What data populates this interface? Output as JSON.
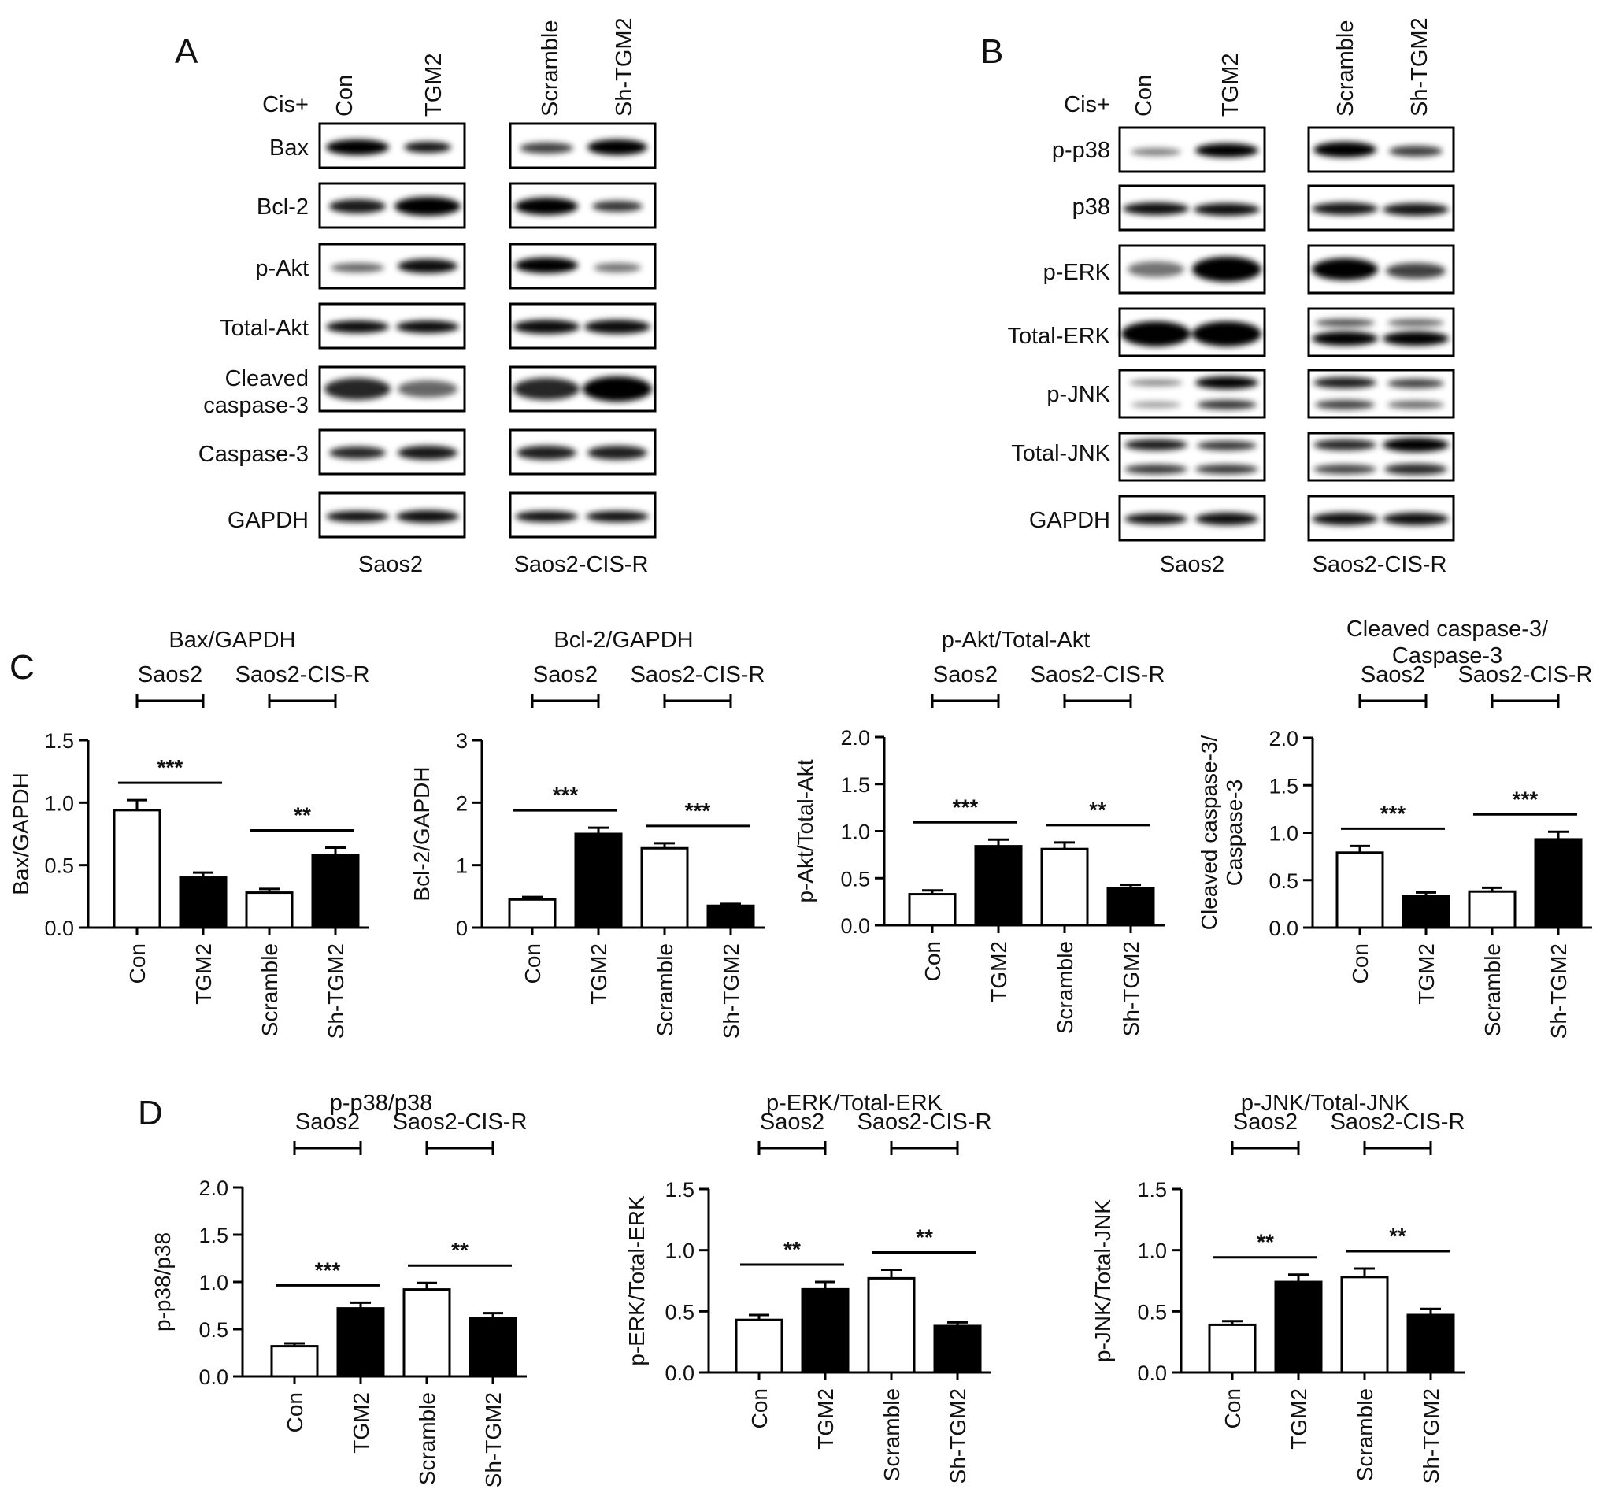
{
  "panels": {
    "A": "A",
    "B": "B",
    "C": "C",
    "D": "D"
  },
  "blots": {
    "A": {
      "cis_label": "Cis+",
      "lanes_left": [
        "Con",
        "TGM2"
      ],
      "lanes_right": [
        "Scramble",
        "Sh-TGM2"
      ],
      "rows": [
        "Bax",
        "Bcl-2",
        "p-Akt",
        "Total-Akt",
        "Cleaved",
        "caspase-3",
        "Caspase-3",
        "GAPDH"
      ],
      "cell_left": "Saos2",
      "cell_right": "Saos2-CIS-R"
    },
    "B": {
      "cis_label": "Cis+",
      "lanes_left": [
        "Con",
        "TGM2"
      ],
      "lanes_right": [
        "Scramble",
        "Sh-TGM2"
      ],
      "rows": [
        "p-p38",
        "p38",
        "p-ERK",
        "Total-ERK",
        "p-JNK",
        "Total-JNK",
        "GAPDH"
      ],
      "cell_left": "Saos2",
      "cell_right": "Saos2-CIS-R"
    }
  },
  "chart_data": [
    {
      "type": "bar",
      "title": [
        "Bax/GAPDH"
      ],
      "ylabel": [
        "Bax/GAPDH"
      ],
      "categories": [
        "Con",
        "TGM2",
        "Scramble",
        "Sh-TGM2"
      ],
      "values": [
        0.94,
        0.4,
        0.28,
        0.58
      ],
      "errors": [
        0.08,
        0.04,
        0.03,
        0.06
      ],
      "fills": [
        "#ffffff",
        "#000000",
        "#ffffff",
        "#000000"
      ],
      "groups": [
        "Saos2",
        "Saos2-CIS-R"
      ],
      "significance": [
        "***",
        "**"
      ],
      "ylim": [
        0,
        1.5
      ],
      "yticks": [
        "0.0",
        "0.5",
        "1.0",
        "1.5"
      ]
    },
    {
      "type": "bar",
      "title": [
        "Bcl-2/GAPDH"
      ],
      "ylabel": [
        "Bcl-2/GAPDH"
      ],
      "categories": [
        "Con",
        "TGM2",
        "Scramble",
        "Sh-TGM2"
      ],
      "values": [
        0.45,
        1.5,
        1.27,
        0.35
      ],
      "errors": [
        0.04,
        0.1,
        0.08,
        0.03
      ],
      "fills": [
        "#ffffff",
        "#000000",
        "#ffffff",
        "#000000"
      ],
      "groups": [
        "Saos2",
        "Saos2-CIS-R"
      ],
      "significance": [
        "***",
        "***"
      ],
      "ylim": [
        0,
        3
      ],
      "yticks": [
        "0",
        "1",
        "2",
        "3"
      ]
    },
    {
      "type": "bar",
      "title": [
        "p-Akt/Total-Akt"
      ],
      "ylabel": [
        "p-Akt/Total-Akt"
      ],
      "categories": [
        "Con",
        "TGM2",
        "Scramble",
        "Sh-TGM2"
      ],
      "values": [
        0.33,
        0.84,
        0.81,
        0.39
      ],
      "errors": [
        0.04,
        0.07,
        0.07,
        0.04
      ],
      "fills": [
        "#ffffff",
        "#000000",
        "#ffffff",
        "#000000"
      ],
      "groups": [
        "Saos2",
        "Saos2-CIS-R"
      ],
      "significance": [
        "***",
        "**"
      ],
      "ylim": [
        0,
        2.0
      ],
      "yticks": [
        "0.0",
        "0.5",
        "1.0",
        "1.5",
        "2.0"
      ]
    },
    {
      "type": "bar",
      "title": [
        "Cleaved caspase-3/",
        "Caspase-3"
      ],
      "ylabel": [
        "Cleaved caspase-3/",
        "Caspase-3"
      ],
      "categories": [
        "Con",
        "TGM2",
        "Scramble",
        "Sh-TGM2"
      ],
      "values": [
        0.79,
        0.33,
        0.38,
        0.93
      ],
      "errors": [
        0.07,
        0.04,
        0.04,
        0.08
      ],
      "fills": [
        "#ffffff",
        "#000000",
        "#ffffff",
        "#000000"
      ],
      "groups": [
        "Saos2",
        "Saos2-CIS-R"
      ],
      "significance": [
        "***",
        "***"
      ],
      "ylim": [
        0,
        2.0
      ],
      "yticks": [
        "0.0",
        "0.5",
        "1.0",
        "1.5",
        "2.0"
      ]
    },
    {
      "type": "bar",
      "title": [
        "p-p38/p38"
      ],
      "ylabel": [
        "p-p38/p38"
      ],
      "categories": [
        "Con",
        "TGM2",
        "Scramble",
        "Sh-TGM2"
      ],
      "values": [
        0.32,
        0.72,
        0.92,
        0.62
      ],
      "errors": [
        0.03,
        0.06,
        0.07,
        0.05
      ],
      "fills": [
        "#ffffff",
        "#000000",
        "#ffffff",
        "#000000"
      ],
      "groups": [
        "Saos2",
        "Saos2-CIS-R"
      ],
      "significance": [
        "***",
        "**"
      ],
      "ylim": [
        0,
        2.0
      ],
      "yticks": [
        "0.0",
        "0.5",
        "1.0",
        "1.5",
        "2.0"
      ]
    },
    {
      "type": "bar",
      "title": [
        "p-ERK/Total-ERK"
      ],
      "ylabel": [
        "p-ERK/Total-ERK"
      ],
      "categories": [
        "Con",
        "TGM2",
        "Scramble",
        "Sh-TGM2"
      ],
      "values": [
        0.43,
        0.68,
        0.77,
        0.38
      ],
      "errors": [
        0.04,
        0.06,
        0.07,
        0.03
      ],
      "fills": [
        "#ffffff",
        "#000000",
        "#ffffff",
        "#000000"
      ],
      "groups": [
        "Saos2",
        "Saos2-CIS-R"
      ],
      "significance": [
        "**",
        "**"
      ],
      "ylim": [
        0,
        1.5
      ],
      "yticks": [
        "0.0",
        "0.5",
        "1.0",
        "1.5"
      ]
    },
    {
      "type": "bar",
      "title": [
        "p-JNK/Total-JNK"
      ],
      "ylabel": [
        "p-JNK/Total-JNK"
      ],
      "categories": [
        "Con",
        "TGM2",
        "Scramble",
        "Sh-TGM2"
      ],
      "values": [
        0.39,
        0.74,
        0.78,
        0.47
      ],
      "errors": [
        0.03,
        0.06,
        0.07,
        0.05
      ],
      "fills": [
        "#ffffff",
        "#000000",
        "#ffffff",
        "#000000"
      ],
      "groups": [
        "Saos2",
        "Saos2-CIS-R"
      ],
      "significance": [
        "**",
        "**"
      ],
      "ylim": [
        0,
        1.5
      ],
      "yticks": [
        "0.0",
        "0.5",
        "1.0",
        "1.5"
      ]
    }
  ]
}
